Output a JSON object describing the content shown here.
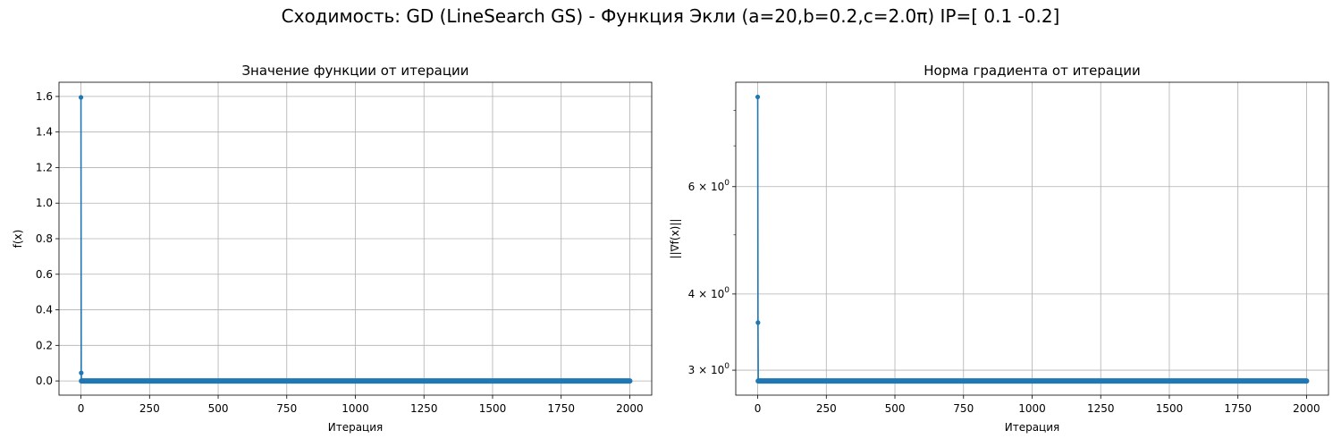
{
  "figure": {
    "suptitle": "Сходимость: GD (LineSearch GS) - Функция Экли (a=20,b=0.2,c=2.0π) IP=[ 0.1 -0.2]"
  },
  "chart_data": [
    {
      "type": "line",
      "title": "Значение функции от итерации",
      "xlabel": "Итерация",
      "ylabel": "f(x)",
      "xlim": [
        -80,
        2080
      ],
      "ylim": [
        -0.08,
        1.68
      ],
      "yscale": "linear",
      "grid": true,
      "xticks": [
        0,
        250,
        500,
        750,
        1000,
        1250,
        1500,
        1750,
        2000
      ],
      "yticks": [
        0.0,
        0.2,
        0.4,
        0.6,
        0.8,
        1.0,
        1.2,
        1.4,
        1.6
      ],
      "ytick_labels": [
        "0.0",
        "0.2",
        "0.4",
        "0.6",
        "0.8",
        "1.0",
        "1.2",
        "1.4",
        "1.6"
      ],
      "color": "#1f77b4",
      "marker": "circle",
      "series": [
        {
          "head": [
            [
              0,
              1.595
            ],
            [
              1,
              0.045
            ],
            [
              2,
              0.0
            ]
          ],
          "tail": {
            "from": 2,
            "to": 2000,
            "value": 0.0
          }
        }
      ]
    },
    {
      "type": "line",
      "title": "Норма градиента от итерации",
      "xlabel": "Итерация",
      "ylabel": "||∇f(x)||",
      "xlim": [
        -80,
        2080
      ],
      "ylim": [
        2.73,
        8.9
      ],
      "yscale": "log",
      "grid": true,
      "xticks": [
        0,
        250,
        500,
        750,
        1000,
        1250,
        1500,
        1750,
        2000
      ],
      "yticks": [
        3,
        4,
        6
      ],
      "ytick_labels": [
        {
          "base": "3 × 10",
          "exp": "0"
        },
        {
          "base": "4 × 10",
          "exp": "0"
        },
        {
          "base": "6 × 10",
          "exp": "0"
        }
      ],
      "yminor_ticks": [
        5,
        7,
        8
      ],
      "color": "#1f77b4",
      "marker": "circle",
      "series": [
        {
          "head": [
            [
              0,
              8.42
            ],
            [
              1,
              3.59
            ],
            [
              2,
              2.88
            ]
          ],
          "tail": {
            "from": 2,
            "to": 2000,
            "value": 2.88
          }
        }
      ]
    }
  ]
}
